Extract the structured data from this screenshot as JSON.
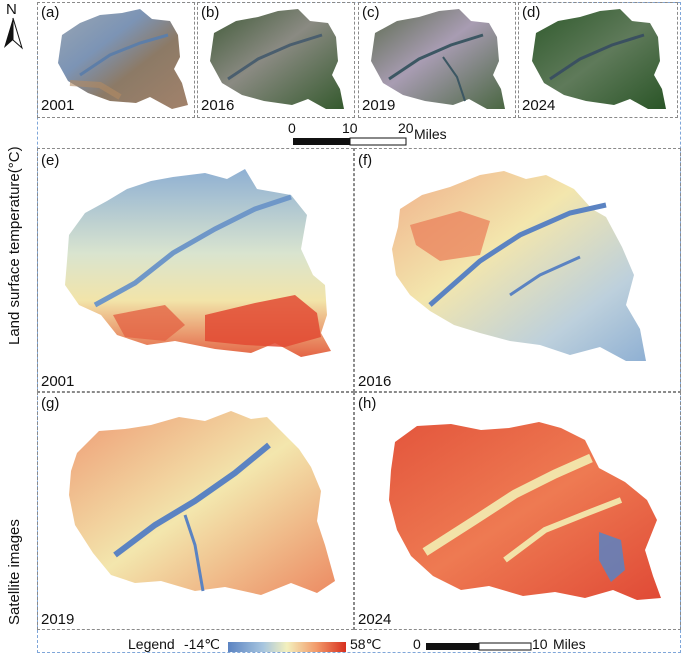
{
  "north_label": "N",
  "side_labels": {
    "lst": "Land surface temperature(°C)",
    "satellite": "Satellite images"
  },
  "satellite_panels": [
    {
      "tag": "(a)",
      "year": "2001"
    },
    {
      "tag": "(b)",
      "year": "2016"
    },
    {
      "tag": "(c)",
      "year": "2019"
    },
    {
      "tag": "(d)",
      "year": "2024"
    }
  ],
  "lst_panels": [
    {
      "tag": "(e)",
      "year": "2001"
    },
    {
      "tag": "(f)",
      "year": "2016"
    },
    {
      "tag": "(g)",
      "year": "2019"
    },
    {
      "tag": "(h)",
      "year": "2024"
    }
  ],
  "scalebar_top": {
    "t0": "0",
    "t1": "10",
    "t2": "20",
    "unit": "Miles"
  },
  "legend": {
    "label": "Legend",
    "min": "-14℃",
    "max": "58℃",
    "colors": [
      "#5b83c2",
      "#a8c6df",
      "#f3f0bd",
      "#f29a6a",
      "#d7301f"
    ]
  },
  "scalebar_bottom": {
    "t0": "0",
    "t1": "10",
    "unit": "Miles"
  }
}
